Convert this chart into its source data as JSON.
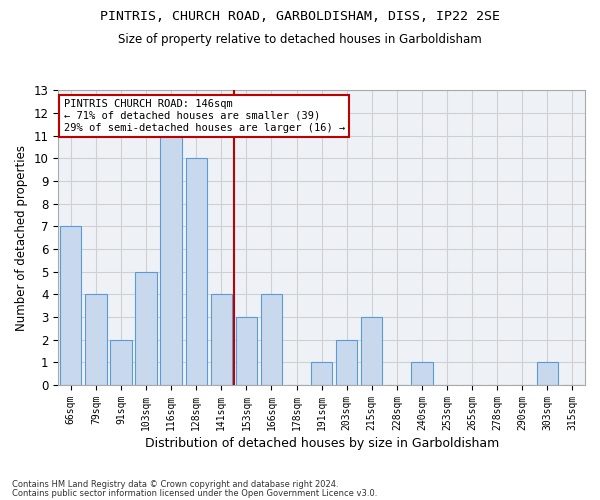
{
  "title1": "PINTRIS, CHURCH ROAD, GARBOLDISHAM, DISS, IP22 2SE",
  "title2": "Size of property relative to detached houses in Garboldisham",
  "xlabel": "Distribution of detached houses by size in Garboldisham",
  "ylabel": "Number of detached properties",
  "footnote1": "Contains HM Land Registry data © Crown copyright and database right 2024.",
  "footnote2": "Contains public sector information licensed under the Open Government Licence v3.0.",
  "categories": [
    "66sqm",
    "79sqm",
    "91sqm",
    "103sqm",
    "116sqm",
    "128sqm",
    "141sqm",
    "153sqm",
    "166sqm",
    "178sqm",
    "191sqm",
    "203sqm",
    "215sqm",
    "228sqm",
    "240sqm",
    "253sqm",
    "265sqm",
    "278sqm",
    "290sqm",
    "303sqm",
    "315sqm"
  ],
  "values": [
    7,
    4,
    2,
    5,
    11,
    10,
    4,
    3,
    4,
    0,
    1,
    2,
    3,
    0,
    1,
    0,
    0,
    0,
    0,
    1,
    0
  ],
  "bar_color": "#c8d9ed",
  "bar_edge_color": "#5b9bd5",
  "grid_color": "#d0d0d0",
  "reference_line_x": 6.5,
  "reference_line_color": "#c00000",
  "legend_title": "PINTRIS CHURCH ROAD: 146sqm",
  "legend_line1": "← 71% of detached houses are smaller (39)",
  "legend_line2": "29% of semi-detached houses are larger (16) →",
  "legend_box_color": "#c00000",
  "ylim": [
    0,
    13
  ],
  "yticks": [
    0,
    1,
    2,
    3,
    4,
    5,
    6,
    7,
    8,
    9,
    10,
    11,
    12,
    13
  ],
  "background_color": "#eef2f7"
}
